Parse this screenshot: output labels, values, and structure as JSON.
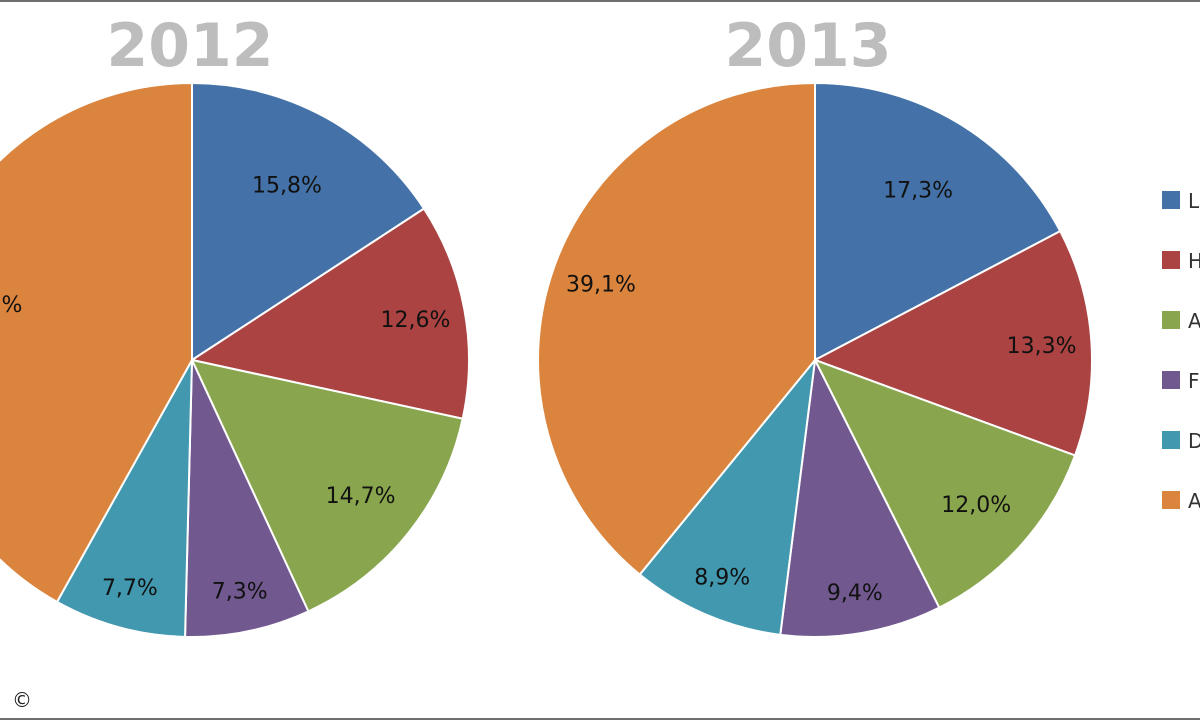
{
  "chart_data": [
    {
      "type": "pie",
      "title": "2012",
      "slices": [
        {
          "value": 15.8,
          "label": "15,8%",
          "color": "#4472a8"
        },
        {
          "value": 12.6,
          "label": "12,6%",
          "color": "#aa4341"
        },
        {
          "value": 14.7,
          "label": "14,7%",
          "color": "#89a54e"
        },
        {
          "value": 7.3,
          "label": "7,3%",
          "color": "#71598f"
        },
        {
          "value": 7.7,
          "label": "7,7%",
          "color": "#4198af"
        },
        {
          "value": 41.9,
          "label": "",
          "color": "#db843d"
        }
      ],
      "partially_visible_label": "%"
    },
    {
      "type": "pie",
      "title": "2013",
      "slices": [
        {
          "value": 17.3,
          "label": "17,3%",
          "color": "#4472a8"
        },
        {
          "value": 13.3,
          "label": "13,3%",
          "color": "#aa4341"
        },
        {
          "value": 12.0,
          "label": "12,0%",
          "color": "#89a54e"
        },
        {
          "value": 9.4,
          "label": "9,4%",
          "color": "#71598f"
        },
        {
          "value": 8.9,
          "label": "8,9%",
          "color": "#4198af"
        },
        {
          "value": 39.1,
          "label": "39,1%",
          "color": "#db843d"
        }
      ]
    }
  ],
  "legend": {
    "placement": "right",
    "items": [
      {
        "label": "L",
        "color": "#4472a8"
      },
      {
        "label": "H",
        "color": "#aa4341"
      },
      {
        "label": "A",
        "color": "#89a54e"
      },
      {
        "label": "F",
        "color": "#71598f"
      },
      {
        "label": "D",
        "color": "#4198af"
      },
      {
        "label": "A",
        "color": "#db843d"
      }
    ]
  },
  "copyright": "©"
}
